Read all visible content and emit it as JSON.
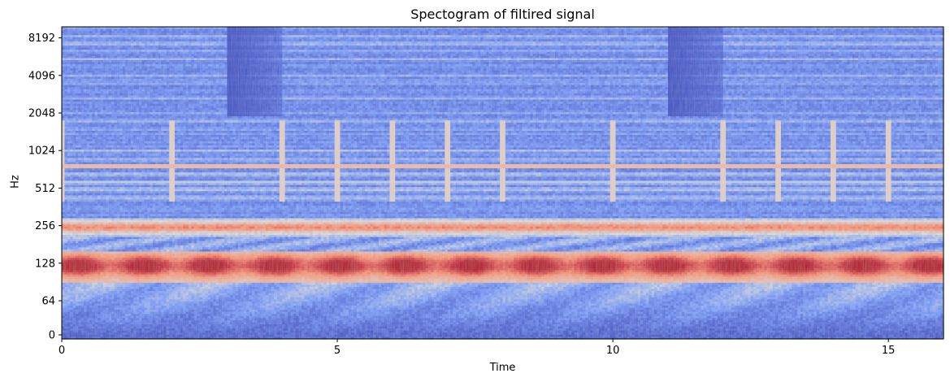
{
  "chart_data": {
    "type": "heatmap",
    "title": "Spectogram of filtired signal",
    "xlabel": "Time",
    "ylabel": "Hz",
    "xlim": [
      0,
      16
    ],
    "x_ticks": [
      0,
      5,
      10,
      15
    ],
    "x_tick_labels": [
      "0",
      "5",
      "10",
      "15"
    ],
    "y_scale": "symlog",
    "y_ticks": [
      0,
      64,
      128,
      256,
      512,
      1024,
      2048,
      4096,
      8192
    ],
    "y_tick_labels": [
      "0",
      "64",
      "128",
      "256",
      "512",
      "1024",
      "2048",
      "4096",
      "8192"
    ],
    "colormap": "coolwarm",
    "colors": {
      "low": "#3b4cc0",
      "mid": "#dddddd",
      "high": "#b40426"
    },
    "note_onsets_s": [
      0,
      2,
      4,
      5,
      6,
      7,
      8,
      10,
      12,
      13,
      14,
      15
    ],
    "quiet_high_freq_regions_s": [
      [
        3,
        4
      ],
      [
        11,
        12
      ]
    ],
    "energy_bands_hz": [
      {
        "low": 96,
        "high": 150,
        "level": "high"
      },
      {
        "low": 220,
        "high": 280,
        "level": "medium"
      },
      {
        "low": 750,
        "high": 800,
        "level": "medium"
      }
    ],
    "grid": false,
    "legend": "none"
  }
}
